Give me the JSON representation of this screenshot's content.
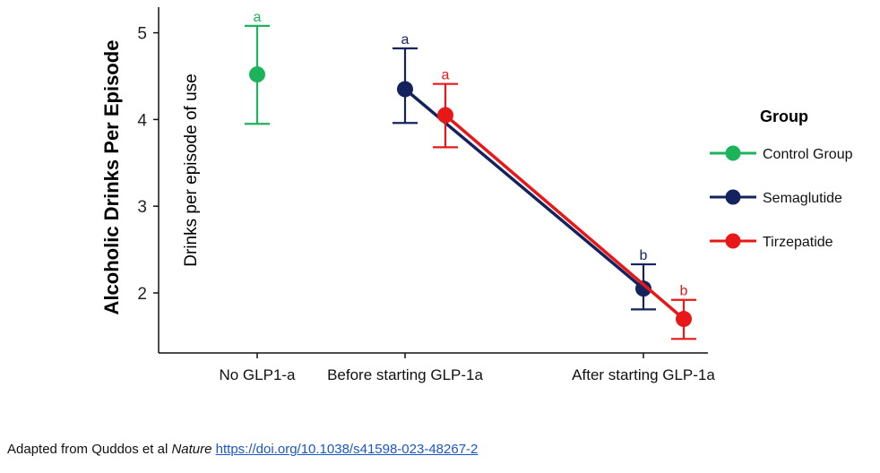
{
  "chart_data": {
    "type": "line",
    "ylabel": "Alcoholic Drinks Per Episode",
    "annotation": "Drinks per episode of use",
    "categories": [
      "No GLP1-a",
      "Before starting GLP-1a",
      "After starting GLP-1a"
    ],
    "ylim": [
      1.3,
      5.3
    ],
    "yticks": [
      2,
      3,
      4,
      5
    ],
    "legend": {
      "title": "Group",
      "position": "right"
    },
    "grid": false,
    "series": [
      {
        "name": "Control Group",
        "color": "#1db35b",
        "points": [
          {
            "category": "No GLP1-a",
            "y": 4.52,
            "lower": 3.95,
            "upper": 5.08,
            "letter": "a"
          }
        ]
      },
      {
        "name": "Semaglutide",
        "color": "#14235e",
        "points": [
          {
            "category": "Before starting GLP-1a",
            "y": 4.35,
            "lower": 3.96,
            "upper": 4.82,
            "letter": "a"
          },
          {
            "category": "After starting GLP-1a",
            "y": 2.05,
            "lower": 1.81,
            "upper": 2.33,
            "letter": "b"
          }
        ]
      },
      {
        "name": "Tirzepatide",
        "color": "#e81818",
        "points": [
          {
            "category": "Before starting GLP-1a",
            "y": 4.05,
            "lower": 3.68,
            "upper": 4.41,
            "letter": "a"
          },
          {
            "category": "After starting GLP-1a",
            "y": 1.7,
            "lower": 1.47,
            "upper": 1.92,
            "letter": "b"
          }
        ]
      }
    ]
  },
  "caption": {
    "prefix": "Adapted from Quddos et al ",
    "journal": "Nature",
    "link": "https://doi.org/10.1038/s41598-023-48267-2"
  }
}
